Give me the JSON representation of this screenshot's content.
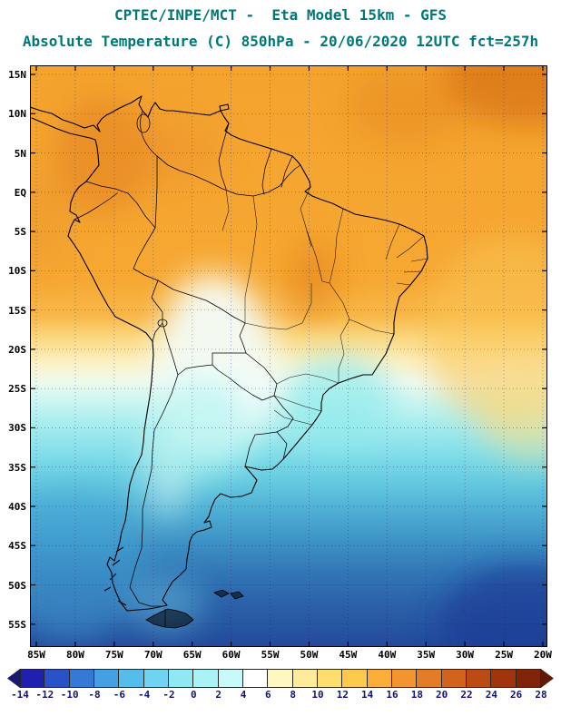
{
  "header": {
    "line1": "CPTEC/INPE/MCT -  Eta Model 15km - GFS",
    "line2": "Absolute Temperature (C) 850hPa - 20/06/2020 12UTC fct=257h",
    "color": "#007878"
  },
  "map": {
    "lat_labels": [
      "15N",
      "10N",
      "5N",
      "EQ",
      "5S",
      "10S",
      "15S",
      "20S",
      "25S",
      "30S",
      "35S",
      "40S",
      "45S",
      "50S",
      "55S"
    ],
    "lon_labels": [
      "85W",
      "80W",
      "75W",
      "70W",
      "65W",
      "60W",
      "55W",
      "50W",
      "45W",
      "40W",
      "35W",
      "30W",
      "25W",
      "20W"
    ]
  },
  "colorbar": {
    "tick_labels": [
      "-14",
      "-12",
      "-10",
      "-8",
      "-6",
      "-4",
      "-2",
      "0",
      "2",
      "4",
      "6",
      "8",
      "10",
      "12",
      "14",
      "16",
      "18",
      "20",
      "22",
      "24",
      "26",
      "28"
    ],
    "segment_colors": [
      "#191970",
      "#2020B0",
      "#2A52C8",
      "#3579D6",
      "#44A0E3",
      "#55BCEC",
      "#6FD3F2",
      "#8FE9F5",
      "#A9F2F5",
      "#C8FAFA",
      "#FFFFFF",
      "#FFF7C2",
      "#FFEC9A",
      "#FFDE6E",
      "#FFC94E",
      "#FCAE3A",
      "#F29530",
      "#E37C26",
      "#D2631D",
      "#BC4A14",
      "#A0350D",
      "#7F2406",
      "#5F1A02"
    ],
    "label_color": "#14146e"
  },
  "chart_data": {
    "type": "heatmap",
    "title": "Absolute Temperature (C) 850hPa",
    "model": "Eta Model 15km - GFS",
    "institution": "CPTEC/INPE/MCT",
    "valid": "20/06/2020 12UTC fct=257h",
    "colorbar_values_C": [
      -14,
      -12,
      -10,
      -8,
      -6,
      -4,
      -2,
      0,
      2,
      4,
      6,
      8,
      10,
      12,
      14,
      16,
      18,
      20,
      22,
      24,
      26,
      28
    ],
    "lat_ticks": [
      "15N",
      "10N",
      "5N",
      "EQ",
      "5S",
      "10S",
      "15S",
      "20S",
      "25S",
      "30S",
      "35S",
      "40S",
      "45S",
      "50S",
      "55S"
    ],
    "lon_ticks": [
      "85W",
      "80W",
      "75W",
      "70W",
      "65W",
      "60W",
      "55W",
      "50W",
      "45W",
      "40W",
      "35W",
      "30W",
      "25W",
      "20W"
    ],
    "field_summary": "Warm air (16-24C, orange) over tropics north of ~15S; pale/white tongue (4-8C) over Bolivia-Paraguay; cold pool (-2 to 4C, cyan) over southern Brazil, Uruguay and N Argentina; deep cold (-6 to -14C, blue to navy) south of 38S, darkest in SE corner"
  }
}
